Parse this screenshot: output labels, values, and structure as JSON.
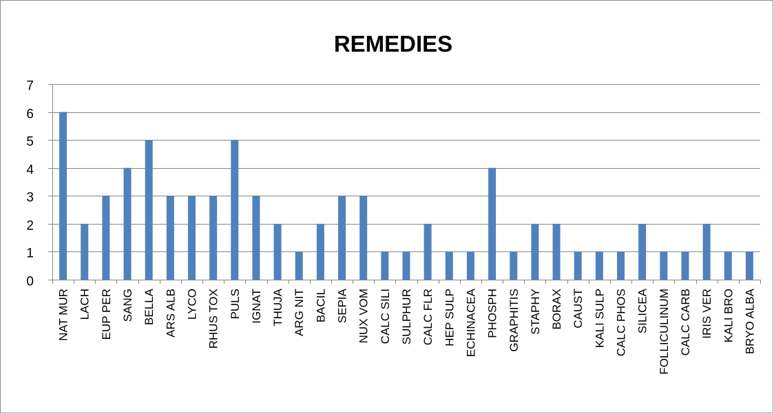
{
  "chart_data": {
    "type": "bar",
    "title": "REMEDIES",
    "xlabel": "",
    "ylabel": "",
    "ylim": [
      0,
      7
    ],
    "yticks": [
      0,
      1,
      2,
      3,
      4,
      5,
      6,
      7
    ],
    "grid": true,
    "legend": "none",
    "bar_color": "#4f81bd",
    "categories": [
      "NAT MUR",
      "LACH",
      "EUP PER",
      "SANG",
      "BELLA",
      "ARS ALB",
      "LYCO",
      "RHUS TOX",
      "PULS",
      "IGNAT",
      "THUJA",
      "ARG NIT",
      "BACIL",
      "SEPIA",
      "NUX VOM",
      "CALC SILI",
      "SULPHUR",
      "CALC FLR",
      "HEP SULP",
      "ECHINACEA",
      "PHOSPH",
      "GRAPHITIS",
      "STAPHY",
      "BORAX",
      "CAUST",
      "KALI SULP",
      "CALC PHOS",
      "SILICEA",
      "FOLLICULINUM",
      "CALC CARB",
      "IRIS VER",
      "KALI BRO",
      "BRYO ALBA"
    ],
    "values": [
      6,
      2,
      3,
      4,
      5,
      3,
      3,
      3,
      5,
      3,
      2,
      1,
      2,
      3,
      3,
      1,
      1,
      2,
      1,
      1,
      4,
      1,
      2,
      2,
      1,
      1,
      1,
      2,
      1,
      1,
      2,
      1,
      1
    ]
  }
}
